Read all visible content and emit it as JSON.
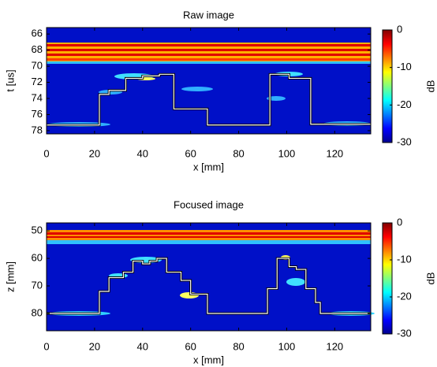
{
  "chart_data": [
    {
      "type": "heatmap",
      "title": "Raw image",
      "xlabel": "x [mm]",
      "ylabel": "t [us]",
      "xlim": [
        0,
        135
      ],
      "ylim": [
        65.2,
        78.4
      ],
      "y_inverted": true,
      "xticks": [
        0,
        20,
        40,
        60,
        80,
        100,
        120
      ],
      "yticks": [
        66,
        68,
        70,
        72,
        74,
        76,
        78
      ],
      "x": [
        0,
        22,
        22,
        26,
        26,
        33,
        33,
        40,
        40,
        47,
        47,
        53,
        53,
        67,
        67,
        93,
        93,
        101,
        101,
        110,
        110,
        135
      ],
      "series": [
        {
          "color": "#ffffff",
          "values": [
            77.3,
            77.3,
            73.5,
            73.5,
            73,
            73,
            71.5,
            71.5,
            71.2,
            71.2,
            71,
            71,
            75.3,
            75.3,
            77.3,
            77.3,
            71,
            71,
            71.5,
            71.5,
            77.2,
            77.2
          ]
        }
      ],
      "colorbar": {
        "label": "dB",
        "lim": [
          -30,
          0
        ],
        "ticks": [
          0,
          -10,
          -20,
          -30
        ]
      }
    },
    {
      "type": "heatmap",
      "title": "Focused image",
      "xlabel": "x [mm]",
      "ylabel": "z [mm]",
      "xlim": [
        0,
        135
      ],
      "ylim": [
        47.1,
        86.3
      ],
      "y_inverted": true,
      "xticks": [
        0,
        20,
        40,
        60,
        80,
        100,
        120
      ],
      "yticks": [
        50,
        60,
        70,
        80
      ],
      "x": [
        0,
        22,
        22,
        26,
        26,
        32,
        32,
        36,
        36,
        40,
        40,
        43,
        43,
        46,
        46,
        50,
        50,
        56,
        56,
        60,
        60,
        67,
        67,
        92,
        92,
        96,
        96,
        101,
        101,
        104,
        104,
        108,
        108,
        112,
        112,
        114,
        114,
        135
      ],
      "series": [
        {
          "color": "#ffffff",
          "values": [
            80,
            80,
            72,
            72,
            67,
            67,
            65,
            65,
            61,
            61,
            62,
            62,
            61,
            61,
            60,
            60,
            65,
            65,
            68,
            68,
            73,
            73,
            80,
            80,
            71,
            71,
            60,
            60,
            63,
            63,
            64,
            64,
            71,
            71,
            76,
            76,
            80,
            80
          ]
        }
      ],
      "colorbar": {
        "label": "dB",
        "lim": [
          -30,
          0
        ],
        "ticks": [
          0,
          -10,
          -20,
          -30
        ]
      }
    }
  ]
}
